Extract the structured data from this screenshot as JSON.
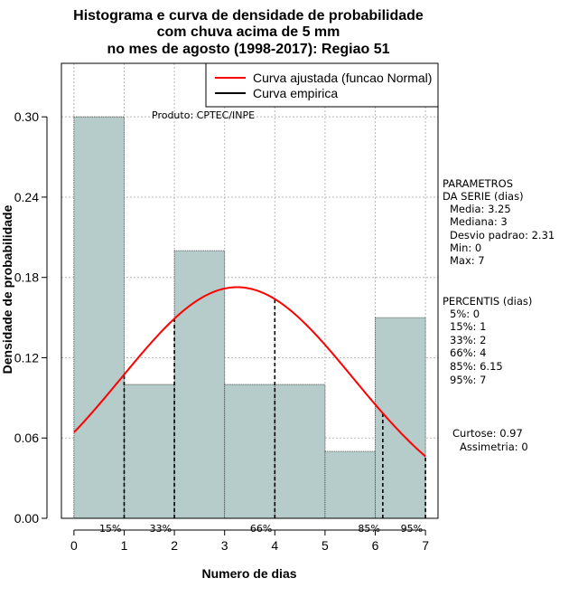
{
  "chart_data": {
    "type": "histogram",
    "title": [
      "Histograma e curva de densidade de probabilidade",
      "com chuva acima de 5 mm",
      "no mes de agosto (1998-2017): Regiao 51"
    ],
    "xlabel": "Numero de dias",
    "ylabel": "Densidade de probabilidade",
    "xlim": [
      -0.25,
      7.25
    ],
    "ylim": [
      0,
      0.34
    ],
    "x_ticks": [
      0,
      1,
      2,
      3,
      4,
      5,
      6,
      7
    ],
    "y_ticks": [
      0.0,
      0.06,
      0.12,
      0.18,
      0.24,
      0.3
    ],
    "y_tick_labels": [
      "0.00",
      "0.06",
      "0.12",
      "0.18",
      "0.24",
      "0.30"
    ],
    "grid": true,
    "bins": [
      {
        "start": 0,
        "end": 1,
        "density": 0.3
      },
      {
        "start": 1,
        "end": 2,
        "density": 0.1
      },
      {
        "start": 2,
        "end": 3,
        "density": 0.2
      },
      {
        "start": 3,
        "end": 4,
        "density": 0.1
      },
      {
        "start": 4,
        "end": 5,
        "density": 0.1
      },
      {
        "start": 5,
        "end": 6,
        "density": 0.05
      },
      {
        "start": 6,
        "end": 7,
        "density": 0.15
      }
    ],
    "bar_color": "#b5cccb",
    "normal_curve": {
      "mean": 3.25,
      "sd": 2.31,
      "color": "#ff0000",
      "range": [
        0,
        7
      ]
    },
    "percentile_lines": [
      {
        "label": "15%",
        "x": 1
      },
      {
        "label": "33%",
        "x": 2
      },
      {
        "label": "66%",
        "x": 4
      },
      {
        "label": "85%",
        "x": 6.15
      },
      {
        "label": "95%",
        "x": 7
      }
    ],
    "legend": {
      "position": "top-right",
      "entries": [
        {
          "label": "Curva ajustada (funcao Normal)",
          "color": "#ff0000"
        },
        {
          "label": "Curva empirica",
          "color": "#000000"
        }
      ]
    },
    "annotation": "Produto: CPTEC/INPE"
  },
  "side_panel": {
    "params_title": [
      "PARAMETROS",
      "DA SERIE (dias)"
    ],
    "params": [
      "Media: 3.25",
      "Mediana: 3",
      "Desvio padrao: 2.31",
      "Min: 0",
      "Max: 7"
    ],
    "percentis_title": "PERCENTIS (dias)",
    "percentis": [
      "5%: 0",
      "15%: 1",
      "33%: 2",
      "66%: 4",
      "85%: 6.15",
      "95%: 7"
    ],
    "curtose": "Curtose: 0.97",
    "assimetria": "Assimetria: 0"
  }
}
